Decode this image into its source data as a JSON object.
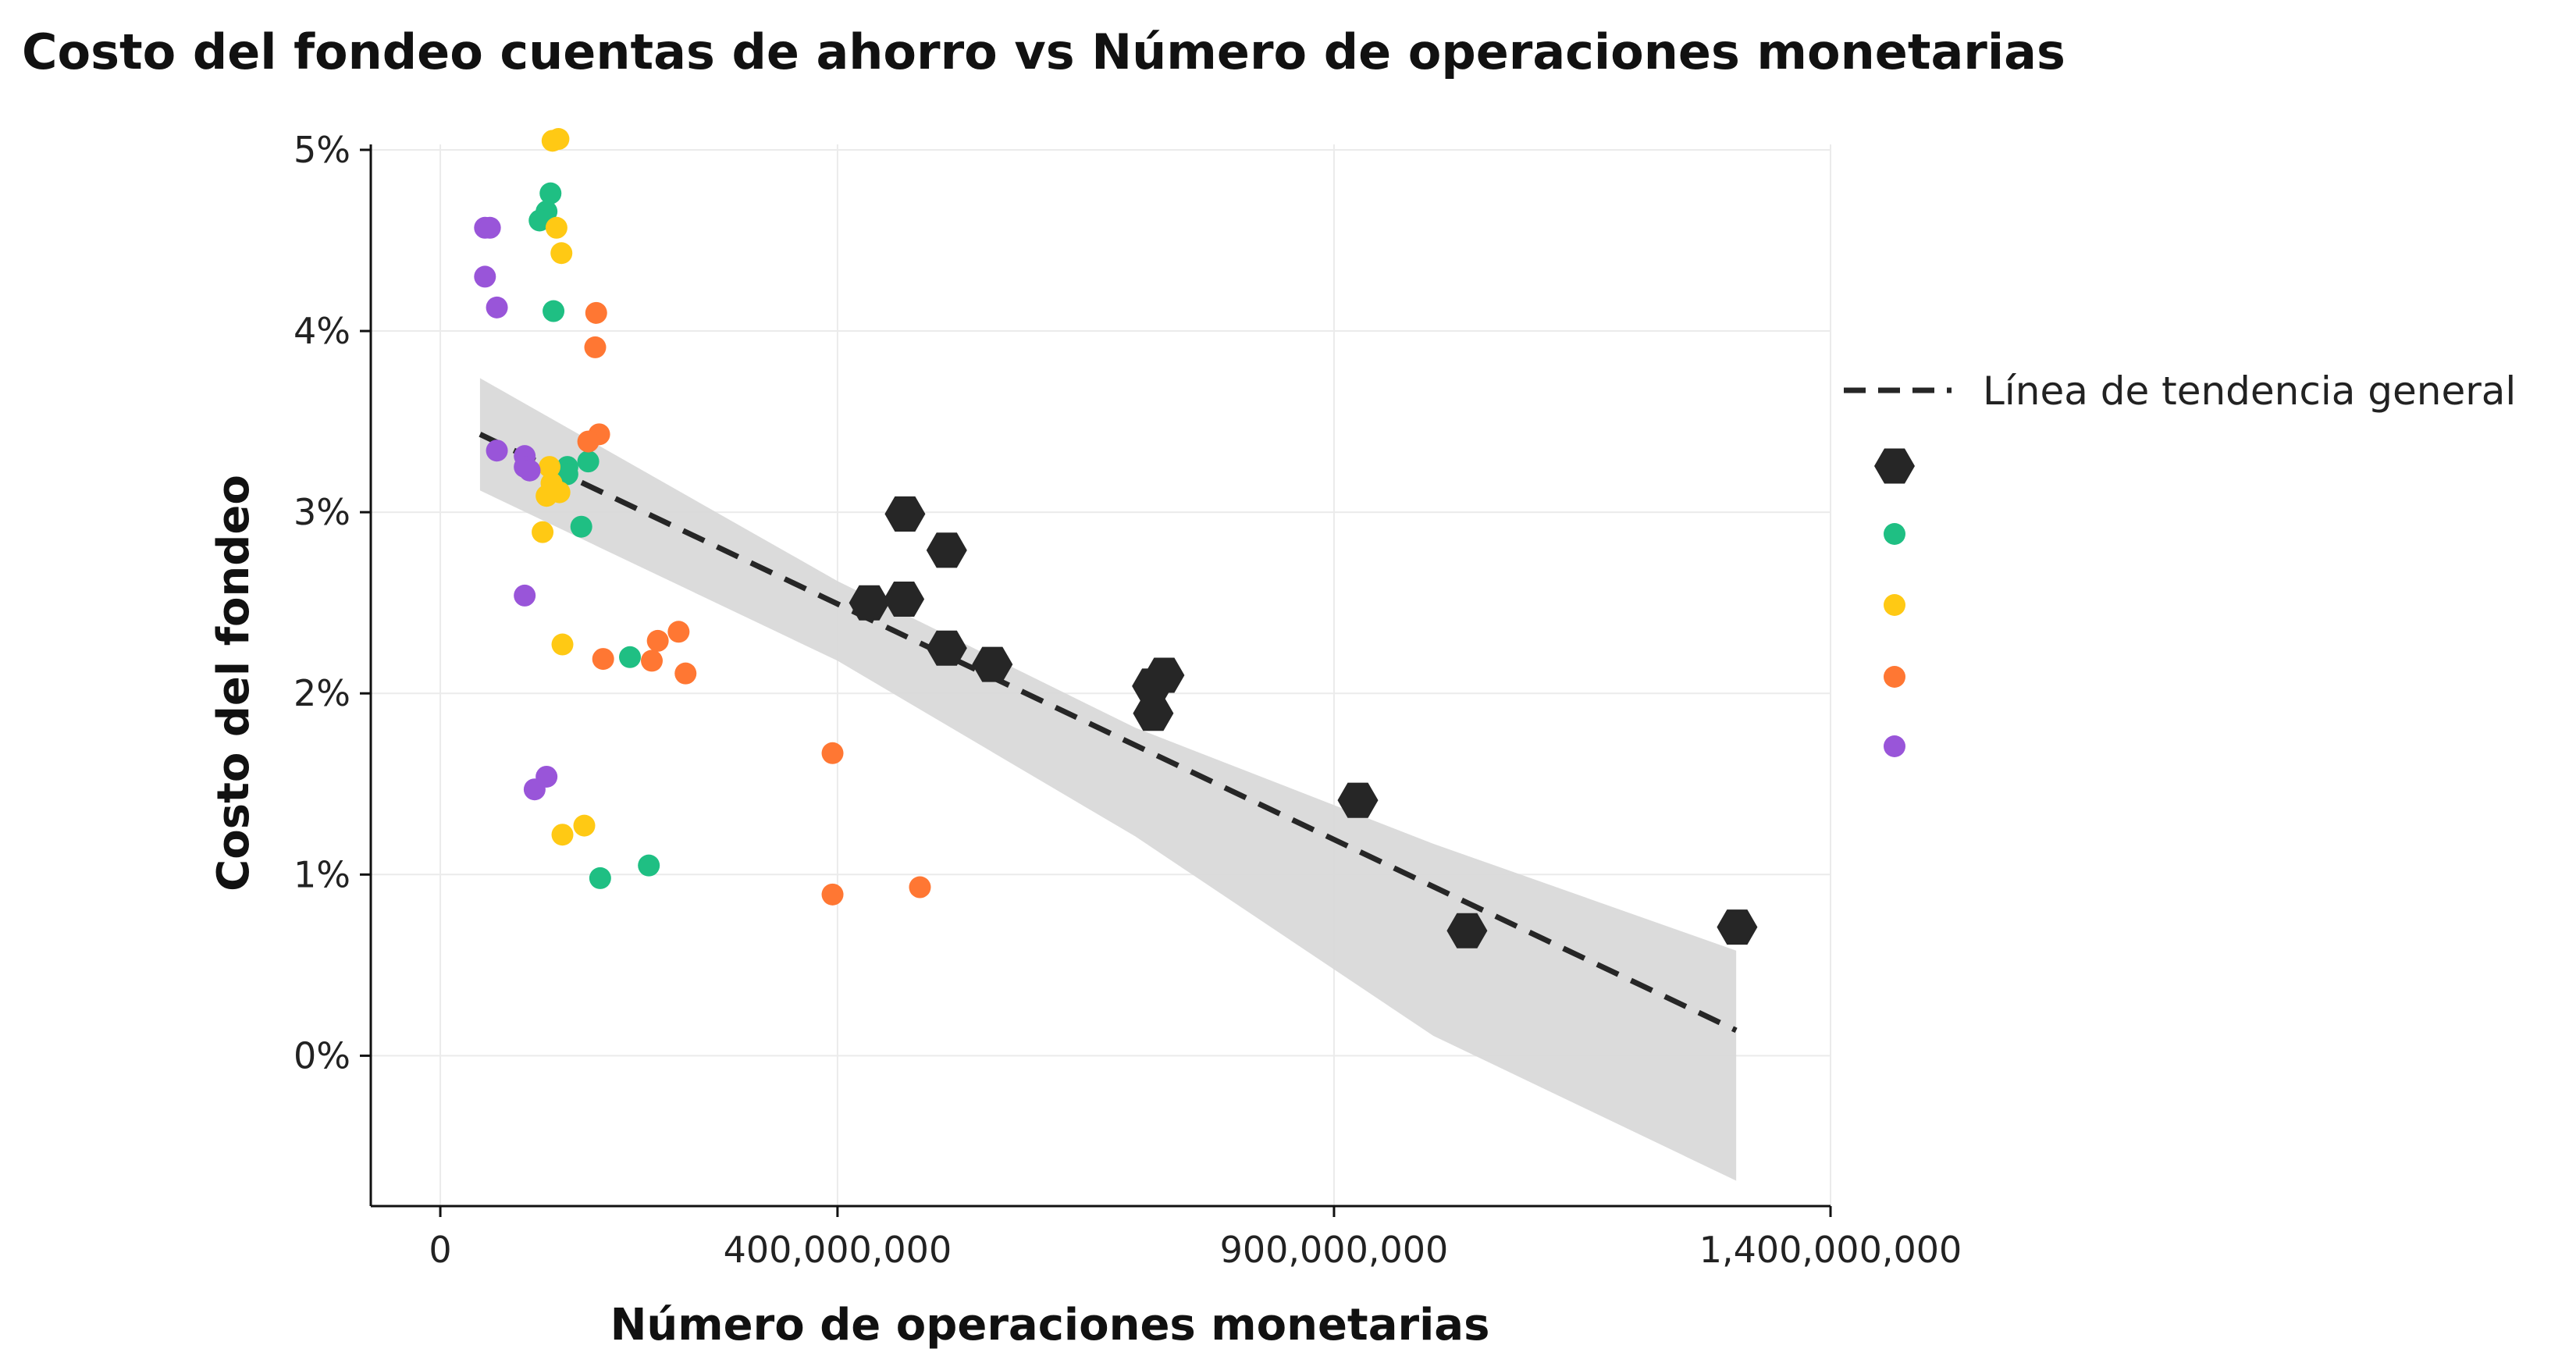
{
  "chart_data": {
    "type": "scatter",
    "title": "Costo del fondeo cuentas de ahorro vs Número de operaciones monetarias",
    "xlabel": "Número de operaciones monetarias",
    "ylabel": "Costo del fondeo",
    "xlim": [
      -70000000,
      1400000000
    ],
    "ylim": [
      -0.0083,
      0.0503
    ],
    "x_ticks": [
      0,
      400000000,
      900000000,
      1400000000
    ],
    "x_tick_labels": [
      "0",
      "400,000,000",
      "900,000,000",
      "1,400,000,000"
    ],
    "y_ticks": [
      0,
      0.01,
      0.02,
      0.03,
      0.04,
      0.05
    ],
    "y_tick_labels": [
      "0%",
      "1%",
      "2%",
      "3%",
      "4%",
      "5%"
    ],
    "grid": true,
    "legend_position": "right",
    "trend_line": {
      "label": "Línea de tendencia general",
      "style": "dashed",
      "color": "#262626",
      "points": [
        [
          40000000,
          0.0343
        ],
        [
          1305000000,
          0.0014
        ]
      ],
      "confidence_band": {
        "color": "#d9d9d9",
        "upper": [
          [
            40000000,
            0.0374
          ],
          [
            400000000,
            0.0262
          ],
          [
            700000000,
            0.0181
          ],
          [
            1000000000,
            0.0117
          ],
          [
            1305000000,
            0.0058
          ]
        ],
        "lower": [
          [
            40000000,
            0.0312
          ],
          [
            400000000,
            0.0218
          ],
          [
            700000000,
            0.0121
          ],
          [
            1000000000,
            0.0011
          ],
          [
            1305000000,
            -0.0069
          ]
        ]
      }
    },
    "series": [
      {
        "color": "#262626",
        "marker": "hexagon",
        "points": [
          [
            468000000,
            0.0299
          ],
          [
            510000000,
            0.0279
          ],
          [
            432000000,
            0.025
          ],
          [
            467000000,
            0.0252
          ],
          [
            510000000,
            0.0225
          ],
          [
            556000000,
            0.0216
          ],
          [
            717000000,
            0.0204
          ],
          [
            729000000,
            0.021
          ],
          [
            718000000,
            0.0189
          ],
          [
            924000000,
            0.0141
          ],
          [
            1034000000,
            0.0069
          ],
          [
            1306000000,
            0.0071
          ]
        ]
      },
      {
        "color": "#1fbf83",
        "marker": "circle",
        "points": [
          [
            111000000,
            0.0476
          ],
          [
            107000000,
            0.0466
          ],
          [
            100000000,
            0.0461
          ],
          [
            114000000,
            0.0411
          ],
          [
            149000000,
            0.0328
          ],
          [
            128000000,
            0.0325
          ],
          [
            128000000,
            0.0321
          ],
          [
            142000000,
            0.0292
          ],
          [
            191000000,
            0.022
          ],
          [
            161000000,
            0.0098
          ],
          [
            210000000,
            0.0105
          ]
        ]
      },
      {
        "color": "#ffc914",
        "marker": "circle",
        "points": [
          [
            113000000,
            0.0505
          ],
          [
            119000000,
            0.0506
          ],
          [
            117000000,
            0.0457
          ],
          [
            122000000,
            0.0443
          ],
          [
            110000000,
            0.0325
          ],
          [
            112000000,
            0.0316
          ],
          [
            107000000,
            0.0309
          ],
          [
            120000000,
            0.0311
          ],
          [
            103000000,
            0.0289
          ],
          [
            123000000,
            0.0227
          ],
          [
            123000000,
            0.0122
          ],
          [
            145000000,
            0.0127
          ]
        ]
      },
      {
        "color": "#ff7733",
        "marker": "circle",
        "points": [
          [
            157000000,
            0.041
          ],
          [
            156000000,
            0.0391
          ],
          [
            160000000,
            0.0343
          ],
          [
            149000000,
            0.0339
          ],
          [
            219000000,
            0.0229
          ],
          [
            240000000,
            0.0234
          ],
          [
            164000000,
            0.0219
          ],
          [
            213000000,
            0.0218
          ],
          [
            247000000,
            0.0211
          ],
          [
            395000000,
            0.0167
          ],
          [
            395000000,
            0.0089
          ],
          [
            483000000,
            0.0093
          ]
        ]
      },
      {
        "color": "#9955d9",
        "marker": "circle",
        "points": [
          [
            45000000,
            0.0457
          ],
          [
            50000000,
            0.0457
          ],
          [
            45000000,
            0.043
          ],
          [
            57000000,
            0.0413
          ],
          [
            57000000,
            0.0334
          ],
          [
            85000000,
            0.0331
          ],
          [
            85000000,
            0.0325
          ],
          [
            90000000,
            0.0323
          ],
          [
            85000000,
            0.0254
          ],
          [
            107000000,
            0.0154
          ],
          [
            95000000,
            0.0147
          ]
        ]
      }
    ]
  }
}
